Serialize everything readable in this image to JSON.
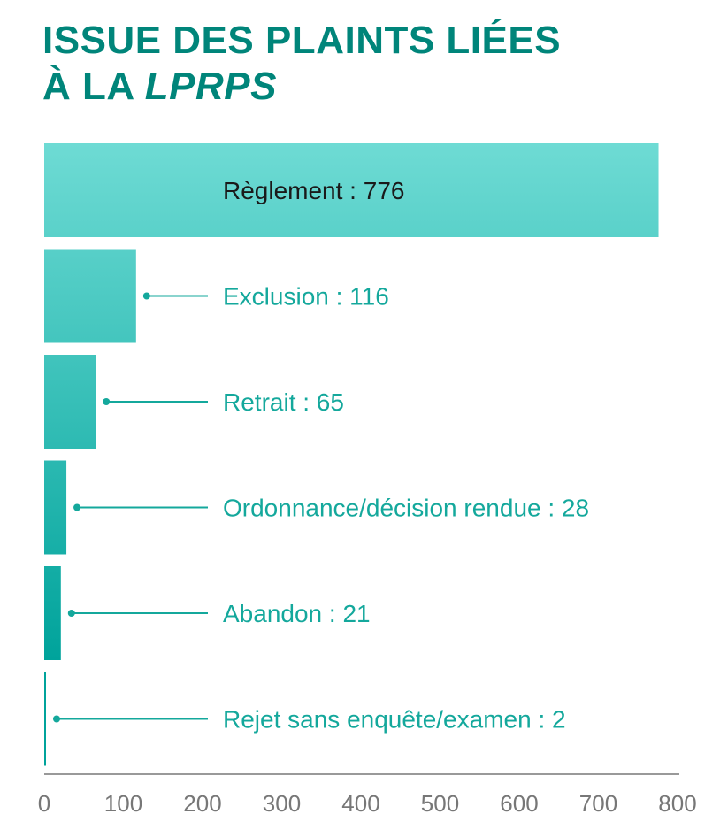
{
  "title": {
    "line1": "ISSUE DES PLAINTS LIÉES",
    "line2_prefix": "À LA ",
    "line2_emphasis": "LPRPS"
  },
  "colors": {
    "title": "#00857a",
    "label_teal": "#14a89c",
    "label_dark": "#1a1a1a",
    "axis": "#999999",
    "bar_gradient": [
      "#6edbd4",
      "#00a39b"
    ]
  },
  "chart_data": {
    "type": "bar",
    "orientation": "horizontal",
    "categories": [
      "Règlement",
      "Exclusion",
      "Retrait",
      "Ordonnance/décision rendue",
      "Abandon",
      "Rejet sans enquête/examen"
    ],
    "values": [
      776,
      116,
      65,
      28,
      21,
      2
    ],
    "labels": [
      "Règlement : 776",
      "Exclusion : 116",
      "Retrait : 65",
      "Ordonnance/décision rendue : 28",
      "Abandon : 21",
      "Rejet sans enquête/examen : 2"
    ],
    "xlim": [
      0,
      800
    ],
    "xticks": [
      0,
      100,
      200,
      300,
      400,
      500,
      600,
      700,
      800
    ],
    "grid": false,
    "legend": "none"
  }
}
